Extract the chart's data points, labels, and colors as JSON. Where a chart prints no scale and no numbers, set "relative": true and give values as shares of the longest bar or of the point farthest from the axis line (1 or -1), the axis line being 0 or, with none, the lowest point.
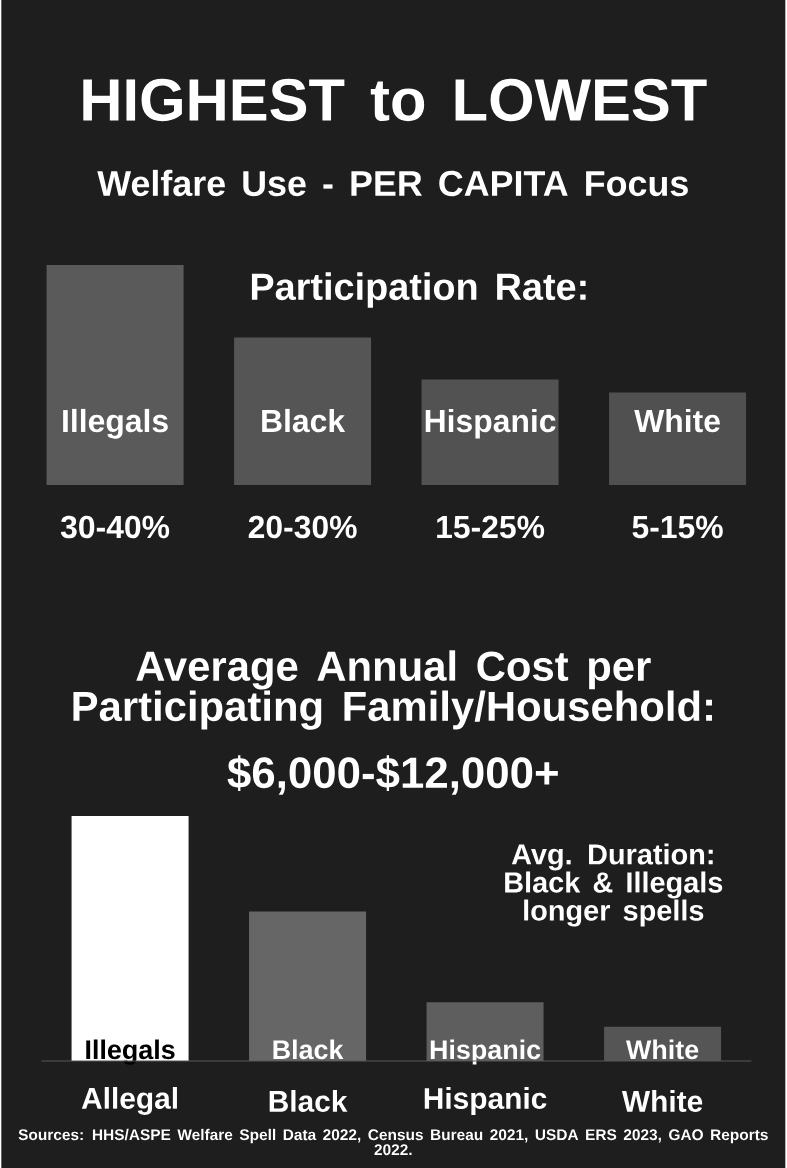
{
  "chart_data": [
    {
      "type": "bar",
      "title": "HIGHEST to LOWEST",
      "subtitle": "Welfare Use - PER CAPITA Focus",
      "relative": true,
      "categories": [
        "Illegals",
        "Black",
        "Hispanic",
        "White"
      ],
      "values": [
        1,
        0.67,
        0.48,
        0.42
      ],
      "colors": [
        "#5a5a5a",
        "#555555",
        "#525252",
        "#505050"
      ],
      "annotations": [
        "30-40%",
        "20-30%",
        "15-25%",
        "5-15%",
        "Participation Rate:"
      ]
    },
    {
      "type": "bar",
      "title": "Average Annual Cost per Participating Family/Household:",
      "subtitle": "$6,000-$12,000+",
      "relative": true,
      "categories": [
        "Illegals",
        "Black",
        "Hispanic",
        "White"
      ],
      "values": [
        1,
        0.61,
        0.24,
        0.14
      ],
      "colors": [
        "#ffffff",
        "#666666",
        "#5e5e5e",
        "#555555"
      ],
      "annotations": [
        "Allegal",
        "Black",
        "Hispanic",
        "White",
        "Avg. Duration: Black & Illegals longer spells",
        "Sources: HHS/ASPE Welfare Spell Data 2022, Census Bureau 2021, USDA ERS 2023, GAO Reports 2022."
      ]
    }
  ]
}
